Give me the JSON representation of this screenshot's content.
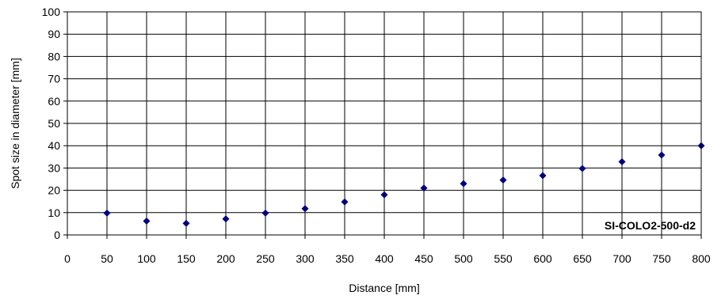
{
  "chart_data": {
    "type": "scatter",
    "title": "",
    "xlabel": "Distance [mm]",
    "ylabel": "Spot size in diameter [mm]",
    "annotation": "SI-COLO2-500-d2",
    "xlim": [
      0,
      800
    ],
    "ylim": [
      0,
      100
    ],
    "x_ticks": [
      0,
      50,
      100,
      150,
      200,
      250,
      300,
      350,
      400,
      450,
      500,
      550,
      600,
      650,
      700,
      750,
      800
    ],
    "y_ticks": [
      0,
      10,
      20,
      30,
      40,
      50,
      60,
      70,
      80,
      90,
      100
    ],
    "grid": true,
    "marker_color": "#000080",
    "series": [
      {
        "x": [
          50,
          100,
          150,
          200,
          250,
          300,
          350,
          400,
          450,
          500,
          550,
          600,
          650,
          700,
          750,
          800
        ],
        "y": [
          9.8,
          6.2,
          5.2,
          7.2,
          9.8,
          11.8,
          14.8,
          18.0,
          21.0,
          23.0,
          24.6,
          26.6,
          29.8,
          32.8,
          35.8,
          40.0
        ]
      }
    ]
  }
}
